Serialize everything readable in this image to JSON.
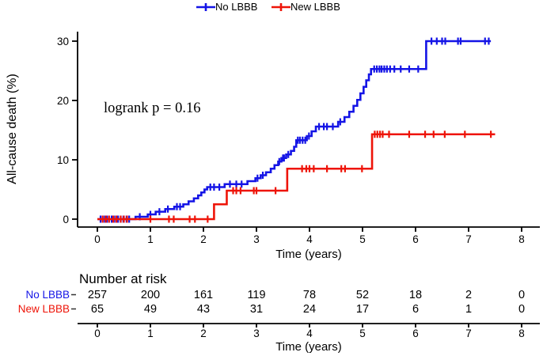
{
  "chart_data": {
    "type": "line",
    "subtype": "kaplan-meier-cumulative-incidence-step",
    "title": "",
    "xlabel": "Time (years)",
    "ylabel": "All-cause death (%)",
    "xlim": [
      0,
      8
    ],
    "ylim": [
      0,
      30
    ],
    "xticks": [
      0,
      1,
      2,
      3,
      4,
      5,
      6,
      7,
      8
    ],
    "yticks": [
      0,
      10,
      20,
      30
    ],
    "grid": false,
    "legend_position": "top-center",
    "annotation": "logrank p = 0.16",
    "axis_color": "#000000",
    "series": [
      {
        "name": "No LBBB",
        "color": "#1414E6",
        "end": 7.42,
        "steps": [
          [
            0,
            0
          ],
          [
            0.72,
            0.4
          ],
          [
            0.95,
            0.8
          ],
          [
            1.1,
            1.25
          ],
          [
            1.28,
            1.7
          ],
          [
            1.45,
            2.1
          ],
          [
            1.62,
            2.5
          ],
          [
            1.72,
            3.0
          ],
          [
            1.82,
            3.5
          ],
          [
            1.9,
            4.0
          ],
          [
            1.96,
            4.5
          ],
          [
            2.02,
            5.0
          ],
          [
            2.07,
            5.4
          ],
          [
            2.4,
            5.9
          ],
          [
            2.83,
            6.4
          ],
          [
            2.98,
            6.9
          ],
          [
            3.08,
            7.4
          ],
          [
            3.18,
            7.9
          ],
          [
            3.27,
            8.5
          ],
          [
            3.34,
            9.1
          ],
          [
            3.41,
            9.7
          ],
          [
            3.47,
            10.3
          ],
          [
            3.56,
            10.9
          ],
          [
            3.65,
            11.5
          ],
          [
            3.71,
            12.2
          ],
          [
            3.75,
            13.3
          ],
          [
            3.95,
            14.0
          ],
          [
            4.04,
            14.8
          ],
          [
            4.12,
            15.6
          ],
          [
            4.54,
            16.4
          ],
          [
            4.66,
            17.2
          ],
          [
            4.75,
            18.1
          ],
          [
            4.83,
            19.1
          ],
          [
            4.9,
            20.1
          ],
          [
            4.96,
            21.2
          ],
          [
            5.02,
            22.3
          ],
          [
            5.07,
            23.4
          ],
          [
            5.12,
            24.4
          ],
          [
            5.16,
            25.3
          ],
          [
            6.2,
            30
          ]
        ],
        "censors": [
          [
            0.06,
            0
          ],
          [
            0.1,
            0
          ],
          [
            0.14,
            0
          ],
          [
            0.18,
            0
          ],
          [
            0.22,
            0
          ],
          [
            0.27,
            0
          ],
          [
            0.31,
            0
          ],
          [
            0.35,
            0
          ],
          [
            0.39,
            0
          ],
          [
            0.44,
            0
          ],
          [
            0.49,
            0
          ],
          [
            0.55,
            0
          ],
          [
            0.6,
            0
          ],
          [
            0.8,
            0.4
          ],
          [
            1.0,
            0.8
          ],
          [
            1.17,
            1.25
          ],
          [
            1.33,
            1.7
          ],
          [
            1.5,
            2.1
          ],
          [
            1.56,
            2.1
          ],
          [
            2.13,
            5.4
          ],
          [
            2.2,
            5.4
          ],
          [
            2.3,
            5.4
          ],
          [
            2.5,
            5.9
          ],
          [
            2.62,
            5.9
          ],
          [
            2.72,
            5.9
          ],
          [
            3.02,
            6.9
          ],
          [
            3.12,
            7.4
          ],
          [
            3.43,
            9.7
          ],
          [
            3.5,
            10.3
          ],
          [
            3.52,
            10.3
          ],
          [
            3.6,
            10.9
          ],
          [
            3.78,
            13.3
          ],
          [
            3.82,
            13.3
          ],
          [
            3.87,
            13.3
          ],
          [
            3.92,
            13.3
          ],
          [
            3.99,
            14.0
          ],
          [
            4.18,
            15.6
          ],
          [
            4.27,
            15.6
          ],
          [
            4.33,
            15.6
          ],
          [
            4.44,
            15.6
          ],
          [
            4.58,
            16.4
          ],
          [
            5.22,
            25.3
          ],
          [
            5.27,
            25.3
          ],
          [
            5.32,
            25.3
          ],
          [
            5.36,
            25.3
          ],
          [
            5.41,
            25.3
          ],
          [
            5.46,
            25.3
          ],
          [
            5.52,
            25.3
          ],
          [
            5.6,
            25.3
          ],
          [
            5.72,
            25.3
          ],
          [
            5.88,
            25.3
          ],
          [
            6.05,
            25.3
          ],
          [
            6.3,
            30
          ],
          [
            6.4,
            30
          ],
          [
            6.5,
            30
          ],
          [
            6.56,
            30
          ],
          [
            6.8,
            30
          ],
          [
            6.85,
            30
          ],
          [
            7.31,
            30
          ],
          [
            7.38,
            30
          ]
        ]
      },
      {
        "name": "New LBBB",
        "color": "#EE1408",
        "end": 7.5,
        "steps": [
          [
            0,
            0
          ],
          [
            2.2,
            2.5
          ],
          [
            2.44,
            4.8
          ],
          [
            3.58,
            8.5
          ],
          [
            5.18,
            14.3
          ]
        ],
        "censors": [
          [
            0.1,
            0
          ],
          [
            0.16,
            0
          ],
          [
            0.22,
            0
          ],
          [
            0.3,
            0
          ],
          [
            0.36,
            0
          ],
          [
            0.44,
            0
          ],
          [
            0.5,
            0
          ],
          [
            0.56,
            0
          ],
          [
            1.0,
            0
          ],
          [
            1.35,
            0
          ],
          [
            1.44,
            0
          ],
          [
            1.74,
            0
          ],
          [
            1.84,
            0
          ],
          [
            2.08,
            0
          ],
          [
            2.56,
            4.8
          ],
          [
            2.62,
            4.8
          ],
          [
            2.7,
            4.8
          ],
          [
            2.95,
            4.8
          ],
          [
            3.0,
            4.8
          ],
          [
            3.36,
            4.8
          ],
          [
            3.86,
            8.5
          ],
          [
            3.94,
            8.5
          ],
          [
            4.0,
            8.5
          ],
          [
            4.08,
            8.5
          ],
          [
            4.33,
            8.5
          ],
          [
            4.6,
            8.5
          ],
          [
            4.67,
            8.5
          ],
          [
            4.99,
            8.5
          ],
          [
            5.23,
            14.3
          ],
          [
            5.28,
            14.3
          ],
          [
            5.33,
            14.3
          ],
          [
            5.38,
            14.3
          ],
          [
            5.5,
            14.3
          ],
          [
            5.88,
            14.3
          ],
          [
            6.18,
            14.3
          ],
          [
            6.34,
            14.3
          ],
          [
            6.55,
            14.3
          ],
          [
            6.93,
            14.3
          ],
          [
            7.42,
            14.3
          ]
        ]
      }
    ],
    "risk_table": {
      "title": "Number at risk",
      "xlabel": "Time (years)",
      "xticks": [
        0,
        1,
        2,
        3,
        4,
        5,
        6,
        7,
        8
      ],
      "rows": [
        {
          "label": "No LBBB",
          "color": "#1414E6",
          "values": [
            "257",
            "200",
            "161",
            "119",
            "78",
            "52",
            "18",
            "2",
            "0"
          ]
        },
        {
          "label": "New LBBB",
          "color": "#EE1408",
          "values": [
            "65",
            "49",
            "43",
            "31",
            "24",
            "17",
            "6",
            "1",
            "0"
          ]
        }
      ]
    }
  }
}
